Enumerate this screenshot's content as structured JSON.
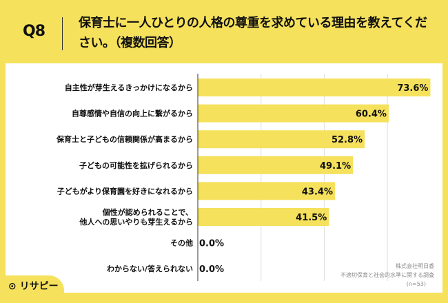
{
  "header": {
    "q_number": "Q8",
    "title": "保育士に一人ひとりの人格の尊重を求めている理由を教えてください。（複数回答）"
  },
  "chart_data": {
    "type": "bar",
    "orientation": "horizontal",
    "categories": [
      "自主性が芽生えるきっかけになるから",
      "自尊感情や自信の向上に繋がるから",
      "保育士と子どもの信頼関係が高まるから",
      "子どもの可能性を拡げられるから",
      "子どもがより保育園を好きになれるから",
      "個性が認められることで、\n他人への思いやりも芽生えるから",
      "その他",
      "わからない/答えられない"
    ],
    "values": [
      73.6,
      60.4,
      52.8,
      49.1,
      43.4,
      41.5,
      0.0,
      0.0
    ],
    "data_labels": [
      "73.6%",
      "60.4%",
      "52.8%",
      "49.1%",
      "43.4%",
      "41.5%",
      "0.0%",
      "0.0%"
    ],
    "xlim": [
      0,
      80
    ],
    "grid": true,
    "bar_color": "#f5e15c"
  },
  "footer": {
    "company": "株式会社明日香",
    "survey": "不適切保育と社会的水準に関する調査",
    "n": "(n=53)"
  },
  "logo": {
    "text": "リサピー"
  }
}
